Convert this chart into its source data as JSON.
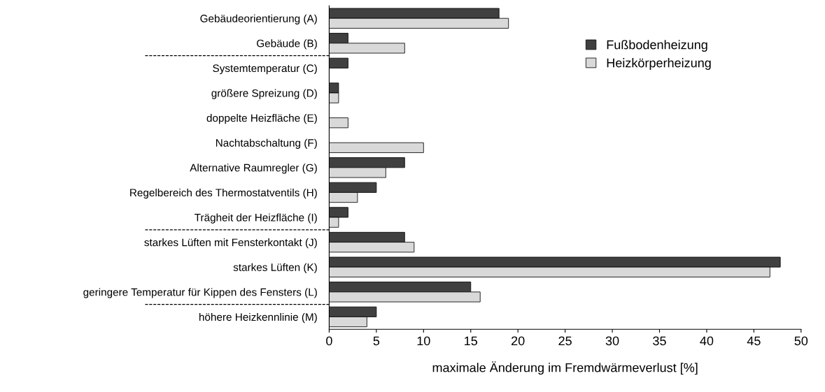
{
  "chart_data": {
    "type": "bar",
    "orientation": "horizontal",
    "xlabel": "maximale Änderung im Fremdwärmeverlust [%]",
    "categories": [
      "Gebäudeorientierung (A)",
      "Gebäude (B)",
      "Systemtemperatur (C)",
      "größere Spreizung (D)",
      "doppelte Heizfläche (E)",
      "Nachtabschaltung (F)",
      "Alternative Raumregler (G)",
      "Regelbereich des Thermostatventils (H)",
      "Trägheit der Heizfläche (I)",
      "starkes Lüften mit Fensterkontakt (J)",
      "starkes Lüften (K)",
      "geringere Temperatur für Kippen des Fensters (L)",
      "höhere Heizkennlinie (M)"
    ],
    "series": [
      {
        "name": "Fußbodenheizung",
        "color": "#404040",
        "values": [
          18,
          2,
          2,
          1,
          null,
          null,
          8,
          5,
          2,
          8,
          47.8,
          15,
          5
        ]
      },
      {
        "name": "Heizkörperheizung",
        "color": "#d9d9d9",
        "values": [
          19,
          8,
          null,
          1,
          2,
          10,
          6,
          3,
          1,
          9,
          46.7,
          16,
          4
        ]
      }
    ],
    "xlim": [
      0,
      50
    ],
    "xticks": [
      0,
      5,
      10,
      15,
      20,
      25,
      30,
      35,
      40,
      45,
      50
    ],
    "grid": false,
    "legend": "top right"
  }
}
